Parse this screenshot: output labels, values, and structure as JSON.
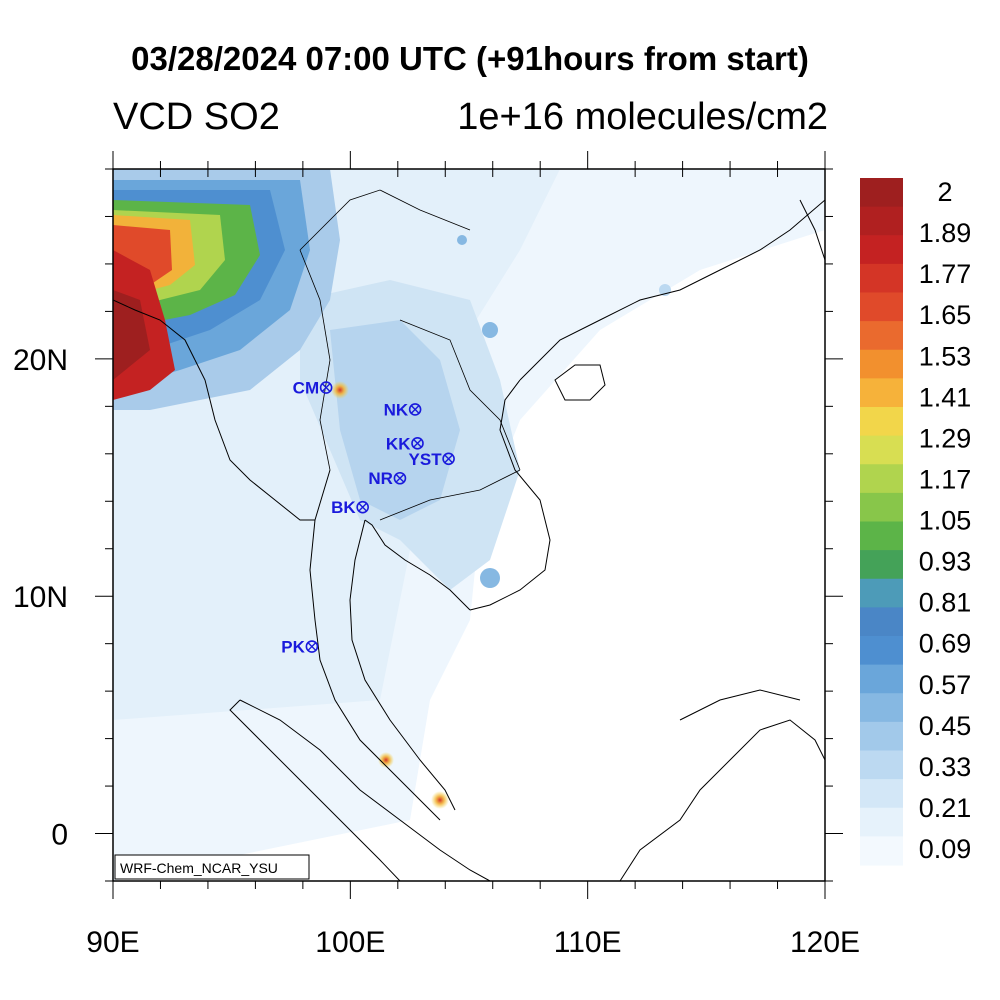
{
  "title": "03/28/2024 07:00 UTC (+91hours from start)",
  "left_title": "VCD SO2",
  "right_title": "1e+16 molecules/cm2",
  "credit": "WRF-Chem_NCAR_YSU",
  "x_ticks": [
    {
      "label": "90E",
      "lon": 90
    },
    {
      "label": "100E",
      "lon": 100
    },
    {
      "label": "110E",
      "lon": 110
    },
    {
      "label": "120E",
      "lon": 120
    }
  ],
  "y_ticks": [
    {
      "label": "20N",
      "lat": 20
    },
    {
      "label": "10N",
      "lat": 10
    },
    {
      "label": "0",
      "lat": 0
    }
  ],
  "colorbar": {
    "labels": [
      "2",
      "1.89",
      "1.77",
      "1.65",
      "1.53",
      "1.41",
      "1.29",
      "1.17",
      "1.05",
      "0.93",
      "0.81",
      "0.69",
      "0.57",
      "0.45",
      "0.33",
      "0.21",
      "0.09"
    ],
    "colors": [
      "#9e1f1f",
      "#b02020",
      "#c42222",
      "#d43526",
      "#e04a2a",
      "#ea6a2e",
      "#f2902e",
      "#f6b23a",
      "#f2d64a",
      "#d8de52",
      "#b0d44e",
      "#88c64a",
      "#5cb448",
      "#44a258",
      "#4d9bb8",
      "#4a86c6",
      "#4e8fd0",
      "#6aa6da",
      "#86b8e2",
      "#a2c9ea",
      "#bcd9f1",
      "#d3e7f7",
      "#e6f2fb",
      "#f3f9fe"
    ]
  },
  "stations": [
    {
      "name": "CM",
      "lon": 98.98,
      "lat": 18.79
    },
    {
      "name": "NK",
      "lon": 102.73,
      "lat": 17.87
    },
    {
      "name": "KK",
      "lon": 102.83,
      "lat": 16.44
    },
    {
      "name": "YST",
      "lon": 104.14,
      "lat": 15.79
    },
    {
      "name": "NR",
      "lon": 102.09,
      "lat": 14.97
    },
    {
      "name": "BK",
      "lon": 100.52,
      "lat": 13.75
    },
    {
      "name": "PK",
      "lon": 98.38,
      "lat": 7.88
    }
  ],
  "colors": {
    "station": "#1a1adc",
    "coast": "#000000"
  }
}
